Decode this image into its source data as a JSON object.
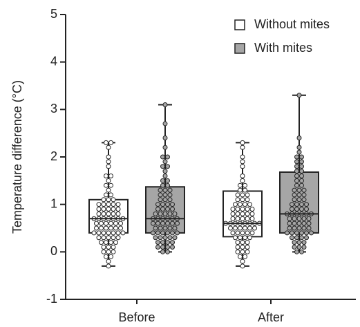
{
  "chart_data": {
    "type": "box",
    "ylabel": "Temperature difference (°C)",
    "categories": [
      "Before",
      "After"
    ],
    "ylim": [
      -1,
      5
    ],
    "yticks": [
      -1,
      0,
      1,
      2,
      3,
      4,
      5
    ],
    "legend": "top-right",
    "series": [
      {
        "name": "Without mites",
        "color": "#ffffff",
        "boxes": [
          {
            "min": -0.3,
            "q1": 0.4,
            "median": 0.7,
            "q3": 1.1,
            "max": 2.3,
            "points": [
              -0.3,
              -0.2,
              -0.1,
              -0.1,
              0,
              0,
              0,
              0.1,
              0.1,
              0.1,
              0.2,
              0.2,
              0.2,
              0.2,
              0.3,
              0.3,
              0.3,
              0.3,
              0.3,
              0.4,
              0.4,
              0.4,
              0.4,
              0.4,
              0.4,
              0.4,
              0.5,
              0.5,
              0.5,
              0.5,
              0.5,
              0.5,
              0.6,
              0.6,
              0.6,
              0.6,
              0.6,
              0.6,
              0.7,
              0.7,
              0.7,
              0.7,
              0.7,
              0.7,
              0.7,
              0.8,
              0.8,
              0.8,
              0.8,
              0.8,
              0.9,
              0.9,
              0.9,
              0.9,
              0.9,
              1.0,
              1.0,
              1.0,
              1.0,
              1.0,
              1.1,
              1.1,
              1.1,
              1.2,
              1.2,
              1.3,
              1.4,
              1.4,
              1.5,
              1.6,
              1.6,
              1.8,
              1.9,
              2.0,
              2.2,
              2.3,
              2.3
            ]
          },
          {
            "min": -0.3,
            "q1": 0.32,
            "median": 0.6,
            "q3": 1.28,
            "max": 2.3,
            "points": [
              -0.3,
              -0.2,
              -0.1,
              -0.1,
              0,
              0,
              0,
              0.1,
              0.1,
              0.1,
              0.2,
              0.2,
              0.2,
              0.3,
              0.3,
              0.3,
              0.3,
              0.4,
              0.4,
              0.4,
              0.4,
              0.4,
              0.5,
              0.5,
              0.5,
              0.5,
              0.5,
              0.5,
              0.6,
              0.6,
              0.6,
              0.6,
              0.6,
              0.6,
              0.6,
              0.6,
              0.7,
              0.7,
              0.7,
              0.7,
              0.7,
              0.8,
              0.8,
              0.8,
              0.8,
              0.8,
              0.9,
              0.9,
              0.9,
              0.9,
              0.9,
              1.0,
              1.0,
              1.0,
              1.0,
              1.1,
              1.1,
              1.1,
              1.2,
              1.2,
              1.2,
              1.3,
              1.3,
              1.4,
              1.4,
              1.5,
              1.6,
              1.8,
              1.9,
              2.0,
              2.2,
              2.3
            ]
          }
        ]
      },
      {
        "name": "With mites",
        "color": "#a6a6a6",
        "boxes": [
          {
            "min": 0,
            "q1": 0.4,
            "median": 0.7,
            "q3": 1.37,
            "max": 3.1,
            "points": [
              0,
              0,
              0.1,
              0.1,
              0.1,
              0.1,
              0.2,
              0.2,
              0.2,
              0.2,
              0.3,
              0.3,
              0.3,
              0.3,
              0.3,
              0.4,
              0.4,
              0.4,
              0.4,
              0.4,
              0.4,
              0.5,
              0.5,
              0.5,
              0.5,
              0.5,
              0.6,
              0.6,
              0.6,
              0.6,
              0.6,
              0.6,
              0.7,
              0.7,
              0.7,
              0.7,
              0.7,
              0.7,
              0.8,
              0.8,
              0.8,
              0.8,
              0.8,
              0.9,
              0.9,
              0.9,
              0.9,
              1.0,
              1.0,
              1.0,
              1.0,
              1.1,
              1.1,
              1.1,
              1.2,
              1.2,
              1.2,
              1.3,
              1.3,
              1.3,
              1.4,
              1.4,
              1.5,
              1.5,
              1.6,
              1.7,
              1.8,
              1.8,
              1.9,
              2.0,
              2.0,
              2.2,
              2.4,
              2.7,
              3.1
            ]
          },
          {
            "min": 0,
            "q1": 0.4,
            "median": 0.8,
            "q3": 1.68,
            "max": 3.3,
            "points": [
              0,
              0,
              0.1,
              0.1,
              0.1,
              0.2,
              0.2,
              0.2,
              0.3,
              0.3,
              0.3,
              0.3,
              0.4,
              0.4,
              0.4,
              0.4,
              0.4,
              0.4,
              0.5,
              0.5,
              0.5,
              0.5,
              0.5,
              0.6,
              0.6,
              0.6,
              0.6,
              0.6,
              0.7,
              0.7,
              0.7,
              0.7,
              0.7,
              0.8,
              0.8,
              0.8,
              0.8,
              0.8,
              0.8,
              0.9,
              0.9,
              0.9,
              0.9,
              1.0,
              1.0,
              1.0,
              1.0,
              1.1,
              1.1,
              1.1,
              1.2,
              1.2,
              1.2,
              1.3,
              1.3,
              1.3,
              1.4,
              1.4,
              1.5,
              1.5,
              1.6,
              1.6,
              1.7,
              1.7,
              1.8,
              1.8,
              1.9,
              1.9,
              2.0,
              2.0,
              2.1,
              2.2,
              2.4,
              3.3
            ]
          }
        ]
      }
    ]
  }
}
